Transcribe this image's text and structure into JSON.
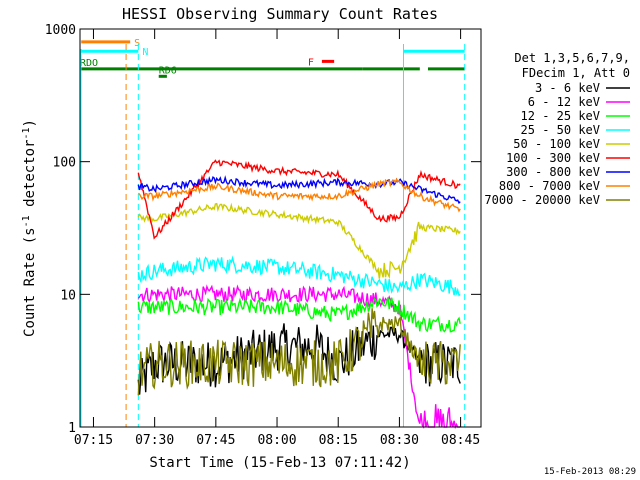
{
  "chart_data": {
    "type": "line",
    "title": "HESSI Observing Summary Count Rates",
    "xlabel": "Start Time (15-Feb-13 07:11:42)",
    "ylabel_main": "Count Rate (s",
    "ylabel_sup1": "-1",
    "ylabel_mid": " detector",
    "ylabel_sup2": "-1",
    "ylabel_end": ")",
    "y_scale": "log",
    "ylim": [
      1,
      1000
    ],
    "xlim": [
      "07:11:42",
      "08:50:00"
    ],
    "x_ticks": [
      "07:15",
      "07:30",
      "07:45",
      "08:00",
      "08:15",
      "08:30",
      "08:45"
    ],
    "y_ticks": [
      "1",
      "10",
      "100",
      "1000"
    ],
    "legend_title_1": "Det 1,3,5,6,7,9,",
    "legend_title_2": "FDecim 1, Att 0",
    "legend_placement": "right",
    "timestamp": "15-Feb-2013 08:29",
    "series": [
      {
        "name": "3 - 6 keV",
        "color": "#000000",
        "points": [
          [
            "07:26",
            2
          ],
          [
            "07:30",
            3
          ],
          [
            "07:45",
            3
          ],
          [
            "08:00",
            4
          ],
          [
            "08:10",
            4
          ],
          [
            "08:15",
            3
          ],
          [
            "08:25",
            5
          ],
          [
            "08:30",
            5
          ],
          [
            "08:35",
            3
          ],
          [
            "08:45",
            3
          ]
        ]
      },
      {
        "name": "6 - 12 keV",
        "color": "#ff00ff",
        "points": [
          [
            "07:26",
            10
          ],
          [
            "07:30",
            10
          ],
          [
            "07:45",
            10
          ],
          [
            "08:00",
            10
          ],
          [
            "08:15",
            10
          ],
          [
            "08:25",
            9
          ],
          [
            "08:30",
            8
          ],
          [
            "08:35",
            1
          ],
          [
            "08:45",
            1
          ]
        ]
      },
      {
        "name": "12 - 25 keV",
        "color": "#00ff00",
        "points": [
          [
            "07:26",
            8
          ],
          [
            "07:30",
            8
          ],
          [
            "07:45",
            8
          ],
          [
            "08:00",
            8
          ],
          [
            "08:15",
            7
          ],
          [
            "08:25",
            9
          ],
          [
            "08:30",
            8
          ],
          [
            "08:35",
            6
          ],
          [
            "08:45",
            6
          ]
        ]
      },
      {
        "name": "25 - 50 keV",
        "color": "#00ffff",
        "points": [
          [
            "07:26",
            14
          ],
          [
            "07:30",
            15
          ],
          [
            "07:45",
            17
          ],
          [
            "08:00",
            16
          ],
          [
            "08:15",
            14
          ],
          [
            "08:25",
            12
          ],
          [
            "08:30",
            11
          ],
          [
            "08:35",
            13
          ],
          [
            "08:45",
            11
          ]
        ]
      },
      {
        "name": "50 - 100 keV",
        "color": "#cccc00",
        "points": [
          [
            "07:26",
            38
          ],
          [
            "07:30",
            37
          ],
          [
            "07:45",
            46
          ],
          [
            "08:00",
            40
          ],
          [
            "08:15",
            35
          ],
          [
            "08:25",
            15
          ],
          [
            "08:30",
            16
          ],
          [
            "08:35",
            32
          ],
          [
            "08:45",
            30
          ]
        ]
      },
      {
        "name": "100 - 300 keV",
        "color": "#ff0000",
        "points": [
          [
            "07:26",
            83
          ],
          [
            "07:30",
            27
          ],
          [
            "07:45",
            100
          ],
          [
            "08:00",
            85
          ],
          [
            "08:15",
            80
          ],
          [
            "08:25",
            37
          ],
          [
            "08:30",
            38
          ],
          [
            "08:35",
            80
          ],
          [
            "08:45",
            65
          ]
        ]
      },
      {
        "name": "300 - 800 keV",
        "color": "#0000ff",
        "points": [
          [
            "07:26",
            65
          ],
          [
            "07:30",
            62
          ],
          [
            "07:45",
            73
          ],
          [
            "08:00",
            66
          ],
          [
            "08:15",
            70
          ],
          [
            "08:25",
            68
          ],
          [
            "08:30",
            70
          ],
          [
            "08:35",
            62
          ],
          [
            "08:45",
            50
          ]
        ]
      },
      {
        "name": "800 - 7000 keV",
        "color": "#ff8000",
        "points": [
          [
            "07:26",
            55
          ],
          [
            "07:30",
            55
          ],
          [
            "07:45",
            65
          ],
          [
            "08:00",
            55
          ],
          [
            "08:15",
            55
          ],
          [
            "08:25",
            68
          ],
          [
            "08:30",
            70
          ],
          [
            "08:35",
            55
          ],
          [
            "08:45",
            43
          ]
        ]
      },
      {
        "name": "7000 - 20000 keV",
        "color": "#808000",
        "points": [
          [
            "07:26",
            2.5
          ],
          [
            "07:30",
            3
          ],
          [
            "07:45",
            3
          ],
          [
            "08:00",
            3
          ],
          [
            "08:15",
            3
          ],
          [
            "08:25",
            6
          ],
          [
            "08:30",
            6
          ],
          [
            "08:35",
            3
          ],
          [
            "08:45",
            3
          ]
        ]
      }
    ],
    "flag_bars": [
      {
        "label": "S",
        "color": "#ff8000",
        "y": 800,
        "segments": [
          [
            "07:12",
            "07:24"
          ]
        ]
      },
      {
        "label": "N",
        "color": "#00ffff",
        "y": 680,
        "segments": [
          [
            "07:11:42",
            "07:26"
          ],
          [
            "08:31",
            "08:46"
          ]
        ]
      },
      {
        "label": "RDO",
        "color": "#008000",
        "y": 500,
        "segments": [
          [
            "07:11:42",
            "08:21"
          ],
          [
            "08:21",
            "08:35"
          ],
          [
            "08:37",
            "08:46"
          ]
        ]
      },
      {
        "label": "RD6",
        "color": "#008000",
        "y": 440,
        "segments": [
          [
            "07:31",
            "07:33"
          ]
        ]
      },
      {
        "label": "F",
        "color": "#ff0000",
        "y": 570,
        "segments": [
          [
            "08:11",
            "08:14"
          ]
        ]
      }
    ]
  }
}
